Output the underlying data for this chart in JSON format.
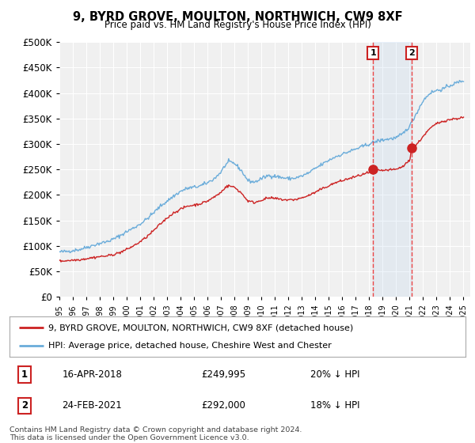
{
  "title": "9, BYRD GROVE, MOULTON, NORTHWICH, CW9 8XF",
  "subtitle": "Price paid vs. HM Land Registry's House Price Index (HPI)",
  "ylabel_ticks": [
    "£0",
    "£50K",
    "£100K",
    "£150K",
    "£200K",
    "£250K",
    "£300K",
    "£350K",
    "£400K",
    "£450K",
    "£500K"
  ],
  "ytick_values": [
    0,
    50000,
    100000,
    150000,
    200000,
    250000,
    300000,
    350000,
    400000,
    450000,
    500000
  ],
  "xlim_start": 1995.0,
  "xlim_end": 2025.5,
  "ylim_bottom": 0,
  "ylim_top": 500000,
  "transaction1_date": "16-APR-2018",
  "transaction1_price": 249995,
  "transaction1_label": "1",
  "transaction1_pct": "20% ↓ HPI",
  "transaction1_x": 2018.29,
  "transaction2_date": "24-FEB-2021",
  "transaction2_price": 292000,
  "transaction2_label": "2",
  "transaction2_pct": "18% ↓ HPI",
  "transaction2_x": 2021.15,
  "legend_line1": "9, BYRD GROVE, MOULTON, NORTHWICH, CW9 8XF (detached house)",
  "legend_line2": "HPI: Average price, detached house, Cheshire West and Chester",
  "footer_line1": "Contains HM Land Registry data © Crown copyright and database right 2024.",
  "footer_line2": "This data is licensed under the Open Government Licence v3.0.",
  "hpi_color": "#6aacda",
  "price_color": "#cc2222",
  "vline_color": "#ee3333",
  "marker_color": "#cc2222",
  "background_color": "#ffffff",
  "plot_bg_color": "#f0f0f0",
  "grid_color": "#ffffff",
  "span_color": "#ddeeff"
}
